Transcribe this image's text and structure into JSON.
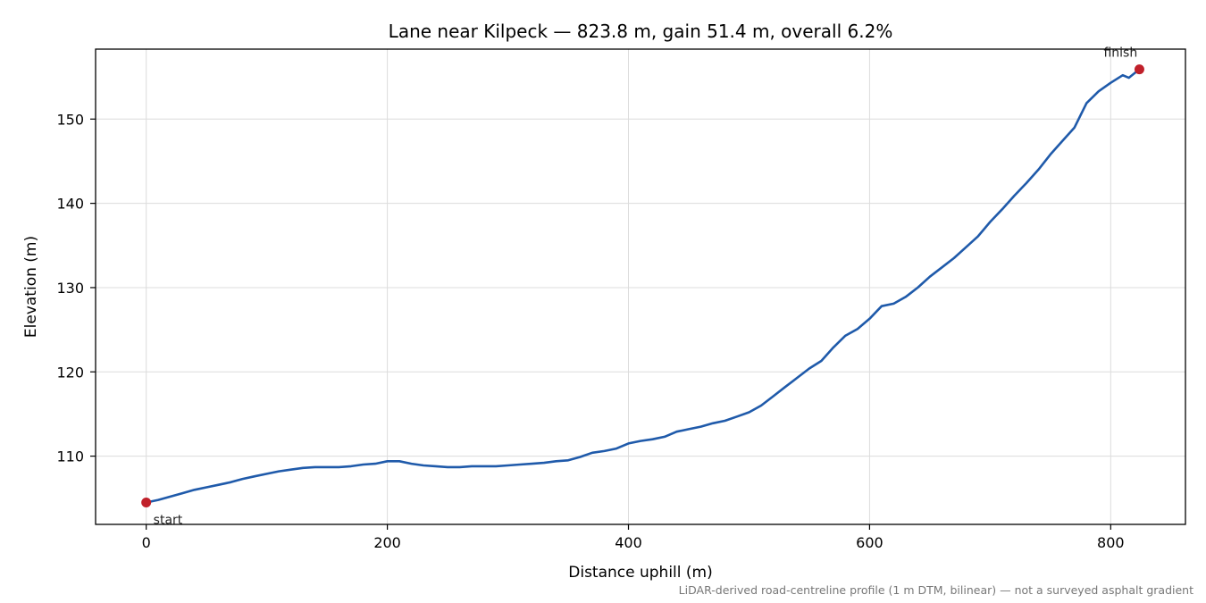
{
  "chart_data": {
    "type": "line",
    "title": "Lane near Kilpeck — 823.8 m, gain 51.4 m, overall 6.2%",
    "xlabel": "Distance uphill (m)",
    "ylabel": "Elevation (m)",
    "xlim": [
      -42,
      862
    ],
    "ylim": [
      101.9,
      158.3
    ],
    "xticks": [
      0,
      200,
      400,
      600,
      800
    ],
    "yticks": [
      110,
      120,
      130,
      140,
      150
    ],
    "grid": true,
    "footnote": "LiDAR-derived road-centreline profile (1 m DTM, bilinear) — not a surveyed asphalt gradient",
    "series": [
      {
        "color": "#1f5aaa",
        "points": [
          [
            0,
            104.5
          ],
          [
            10,
            104.8
          ],
          [
            20,
            105.2
          ],
          [
            30,
            105.6
          ],
          [
            40,
            106.0
          ],
          [
            50,
            106.3
          ],
          [
            60,
            106.6
          ],
          [
            70,
            106.9
          ],
          [
            80,
            107.3
          ],
          [
            90,
            107.6
          ],
          [
            100,
            107.9
          ],
          [
            110,
            108.2
          ],
          [
            120,
            108.4
          ],
          [
            130,
            108.6
          ],
          [
            140,
            108.7
          ],
          [
            150,
            108.7
          ],
          [
            160,
            108.7
          ],
          [
            170,
            108.8
          ],
          [
            180,
            109.0
          ],
          [
            190,
            109.1
          ],
          [
            200,
            109.4
          ],
          [
            210,
            109.4
          ],
          [
            220,
            109.1
          ],
          [
            230,
            108.9
          ],
          [
            240,
            108.8
          ],
          [
            250,
            108.7
          ],
          [
            260,
            108.7
          ],
          [
            270,
            108.8
          ],
          [
            280,
            108.8
          ],
          [
            290,
            108.8
          ],
          [
            300,
            108.9
          ],
          [
            310,
            109.0
          ],
          [
            320,
            109.1
          ],
          [
            330,
            109.2
          ],
          [
            340,
            109.4
          ],
          [
            350,
            109.5
          ],
          [
            360,
            109.9
          ],
          [
            370,
            110.4
          ],
          [
            380,
            110.6
          ],
          [
            390,
            110.9
          ],
          [
            400,
            111.5
          ],
          [
            410,
            111.8
          ],
          [
            420,
            112.0
          ],
          [
            430,
            112.3
          ],
          [
            440,
            112.9
          ],
          [
            450,
            113.2
          ],
          [
            460,
            113.5
          ],
          [
            470,
            113.9
          ],
          [
            480,
            114.2
          ],
          [
            490,
            114.7
          ],
          [
            500,
            115.2
          ],
          [
            510,
            116.0
          ],
          [
            520,
            117.1
          ],
          [
            530,
            118.2
          ],
          [
            540,
            119.3
          ],
          [
            550,
            120.4
          ],
          [
            560,
            121.3
          ],
          [
            570,
            122.9
          ],
          [
            580,
            124.3
          ],
          [
            590,
            125.1
          ],
          [
            600,
            126.3
          ],
          [
            610,
            127.8
          ],
          [
            620,
            128.1
          ],
          [
            630,
            128.9
          ],
          [
            640,
            130.0
          ],
          [
            650,
            131.3
          ],
          [
            660,
            132.4
          ],
          [
            670,
            133.5
          ],
          [
            680,
            134.8
          ],
          [
            690,
            136.1
          ],
          [
            700,
            137.8
          ],
          [
            710,
            139.3
          ],
          [
            720,
            140.9
          ],
          [
            730,
            142.4
          ],
          [
            740,
            144.0
          ],
          [
            750,
            145.8
          ],
          [
            760,
            147.4
          ],
          [
            770,
            149.0
          ],
          [
            780,
            151.9
          ],
          [
            790,
            153.3
          ],
          [
            800,
            154.3
          ],
          [
            810,
            155.2
          ],
          [
            815,
            154.9
          ],
          [
            823.8,
            155.9
          ]
        ]
      }
    ],
    "markers": [
      {
        "x": 0,
        "y": 104.5,
        "label": "start",
        "color": "#c0202a"
      },
      {
        "x": 823.8,
        "y": 155.9,
        "label": "finish",
        "color": "#c0202a"
      }
    ]
  }
}
